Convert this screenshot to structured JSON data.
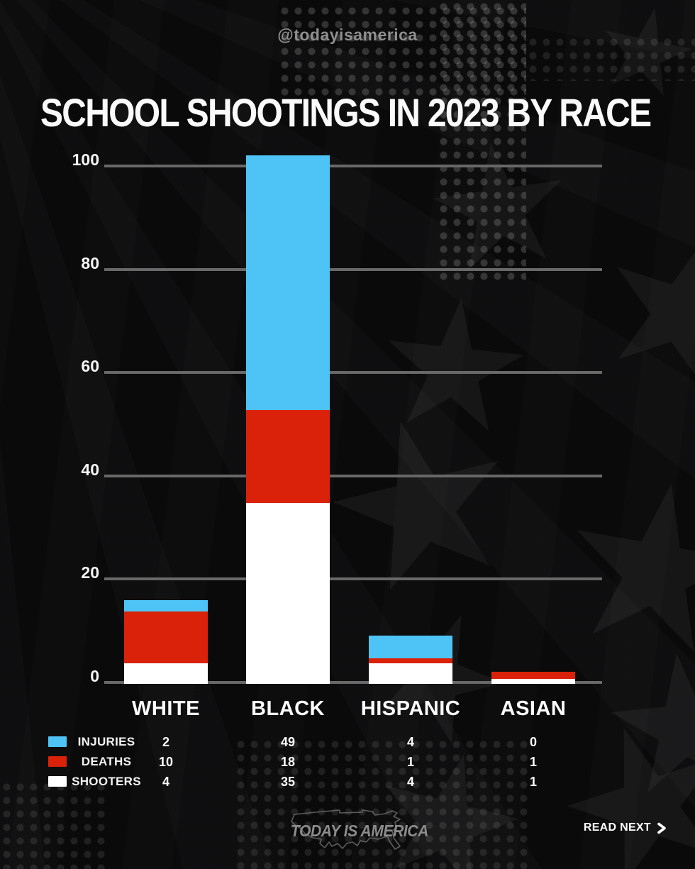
{
  "page": {
    "handle": "@todayisamerica",
    "brand": "TODAY IS AMERICA",
    "read_next_label": "READ NEXT"
  },
  "chart_data": {
    "type": "bar",
    "stacked": true,
    "title": "SCHOOL SHOOTINGS IN 2023 BY RACE",
    "categories": [
      "WHITE",
      "BLACK",
      "HISPANIC",
      "ASIAN"
    ],
    "series": [
      {
        "name": "SHOOTERS",
        "color": "#FFFFFF",
        "values": [
          4,
          35,
          4,
          1
        ]
      },
      {
        "name": "DEATHS",
        "color": "#DA2109",
        "values": [
          10,
          18,
          1,
          1
        ]
      },
      {
        "name": "INJURIES",
        "color": "#4EC4F6",
        "values": [
          2,
          49,
          4,
          0
        ]
      }
    ],
    "legend_order": [
      "INJURIES",
      "DEATHS",
      "SHOOTERS"
    ],
    "y_ticks": [
      0,
      20,
      40,
      60,
      80,
      100
    ],
    "ylim": [
      0,
      100
    ],
    "grid": true,
    "legend_position": "bottom-table",
    "gridline_color": "#686868",
    "background_color": "#0A0A0B"
  }
}
